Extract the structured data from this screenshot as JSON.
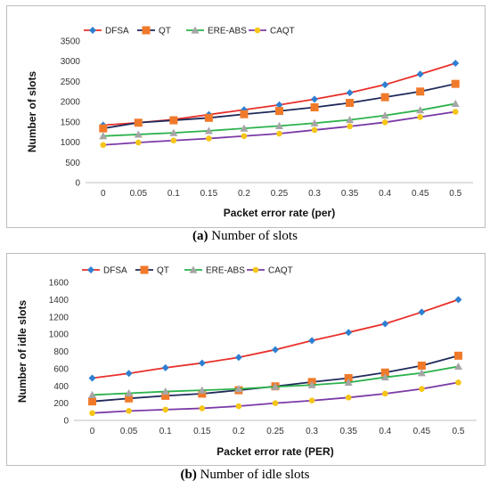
{
  "chart_data": [
    {
      "type": "line",
      "x": [
        0,
        0.05,
        0.1,
        0.15,
        0.2,
        0.25,
        0.3,
        0.35,
        0.4,
        0.45,
        0.5
      ],
      "x_tick_labels": [
        "0",
        "0.05",
        "0.1",
        "0.15",
        "0.2",
        "0.25",
        "0.3",
        "0.35",
        "0.4",
        "0.45",
        "0.5"
      ],
      "xlabel": "Packet error rate (per)",
      "ylabel": "Number of slots",
      "ylim": [
        0,
        3500
      ],
      "y_ticks": [
        0,
        500,
        1000,
        1500,
        2000,
        2500,
        3000,
        3500
      ],
      "legend_position": "top-left",
      "grid": false,
      "caption_label": "(a)",
      "caption_text": "Number of slots",
      "series": [
        {
          "name": "DFSA",
          "color": "#e8302a",
          "marker": "diamond",
          "marker_color": "#2f7fd0",
          "values": [
            1420,
            1480,
            1560,
            1680,
            1800,
            1920,
            2060,
            2220,
            2420,
            2680,
            2950
          ]
        },
        {
          "name": "QT",
          "color": "#1f2a5a",
          "marker": "square",
          "marker_color": "#f07a2a",
          "values": [
            1340,
            1480,
            1540,
            1600,
            1690,
            1770,
            1860,
            1970,
            2110,
            2250,
            2440
          ]
        },
        {
          "name": "ERE-ABS",
          "color": "#2bb24c",
          "marker": "triangle",
          "marker_color": "#a6a6a6",
          "values": [
            1150,
            1190,
            1230,
            1280,
            1340,
            1400,
            1470,
            1550,
            1660,
            1790,
            1950
          ]
        },
        {
          "name": "CAQT",
          "color": "#7b3aa6",
          "marker": "circle",
          "marker_color": "#f5c518",
          "values": [
            930,
            990,
            1040,
            1090,
            1150,
            1210,
            1300,
            1390,
            1490,
            1620,
            1750
          ]
        }
      ]
    },
    {
      "type": "line",
      "x": [
        0,
        0.05,
        0.1,
        0.15,
        0.2,
        0.25,
        0.3,
        0.35,
        0.4,
        0.45,
        0.5
      ],
      "x_tick_labels": [
        "0",
        "0.05",
        "0.1",
        "0.15",
        "0.2",
        "0.25",
        "0.3",
        "0.35",
        "0.4",
        "0.45",
        "0.5"
      ],
      "xlabel": "Packet error rate (PER)",
      "ylabel": "Number of idle slots",
      "ylim": [
        0,
        1600
      ],
      "y_ticks": [
        0,
        200,
        400,
        600,
        800,
        1000,
        1200,
        1400,
        1600
      ],
      "legend_position": "top-left",
      "grid": false,
      "caption_label": "(b)",
      "caption_text": "Number of idle slots",
      "series": [
        {
          "name": "DFSA",
          "color": "#e8302a",
          "marker": "diamond",
          "marker_color": "#2f7fd0",
          "values": [
            490,
            545,
            610,
            665,
            730,
            820,
            925,
            1020,
            1120,
            1255,
            1400
          ]
        },
        {
          "name": "QT",
          "color": "#1f2a5a",
          "marker": "square",
          "marker_color": "#f07a2a",
          "values": [
            220,
            255,
            285,
            310,
            350,
            395,
            445,
            490,
            555,
            635,
            750
          ]
        },
        {
          "name": "ERE-ABS",
          "color": "#2bb24c",
          "marker": "triangle",
          "marker_color": "#a6a6a6",
          "values": [
            295,
            315,
            335,
            350,
            365,
            390,
            410,
            440,
            500,
            550,
            625
          ]
        },
        {
          "name": "CAQT",
          "color": "#7b3aa6",
          "marker": "circle",
          "marker_color": "#f5c518",
          "values": [
            85,
            110,
            125,
            140,
            165,
            200,
            230,
            265,
            310,
            365,
            440
          ]
        }
      ]
    }
  ]
}
